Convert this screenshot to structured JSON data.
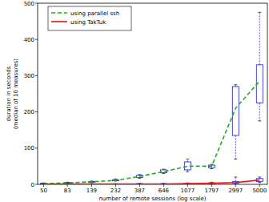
{
  "chart_data": {
    "type": "line",
    "x_label": "number of remote sessions (log scale)",
    "y_label": [
      "duration in seconds",
      "(median of 10 measures)"
    ],
    "log": "x",
    "x": [
      50,
      83,
      139,
      232,
      387,
      646,
      1077,
      1797,
      2997,
      5000
    ],
    "xlim": [
      44,
      5900
    ],
    "xticks": [
      50,
      83,
      139,
      232,
      387,
      646,
      1077,
      1797,
      2997,
      5000
    ],
    "ylim": [
      0,
      500
    ],
    "yticks": [
      0,
      100,
      200,
      300,
      400,
      500
    ],
    "grid": false,
    "legend": "upper left",
    "series": [
      {
        "name": "using parallel ssh",
        "color": "#22aa22",
        "line_style": "dashed",
        "values": [
          2,
          4,
          7,
          11,
          22,
          35,
          50,
          50,
          210,
          285
        ],
        "q1": [
          1,
          3,
          6,
          10,
          19,
          32,
          40,
          46,
          135,
          225
        ],
        "q3": [
          3,
          5,
          8,
          13,
          25,
          40,
          62,
          53,
          270,
          330
        ],
        "low": [
          1,
          2,
          5,
          9,
          17,
          30,
          35,
          43,
          70,
          175
        ],
        "high": [
          4,
          6,
          9,
          15,
          27,
          42,
          70,
          55,
          275,
          475
        ]
      },
      {
        "name": "using TakTuk",
        "color": "#ee1111",
        "line_style": "solid",
        "values": [
          1,
          1,
          1,
          1,
          1,
          1,
          2,
          3,
          5,
          12
        ],
        "q1": [
          0,
          0,
          0,
          0,
          0,
          1,
          1,
          2,
          3,
          8
        ],
        "q3": [
          1,
          1,
          1,
          1,
          2,
          2,
          3,
          4,
          8,
          16
        ],
        "low": [
          0,
          0,
          0,
          0,
          0,
          0,
          1,
          1,
          2,
          5
        ],
        "high": [
          2,
          2,
          2,
          2,
          3,
          3,
          4,
          6,
          20,
          20
        ]
      }
    ]
  }
}
